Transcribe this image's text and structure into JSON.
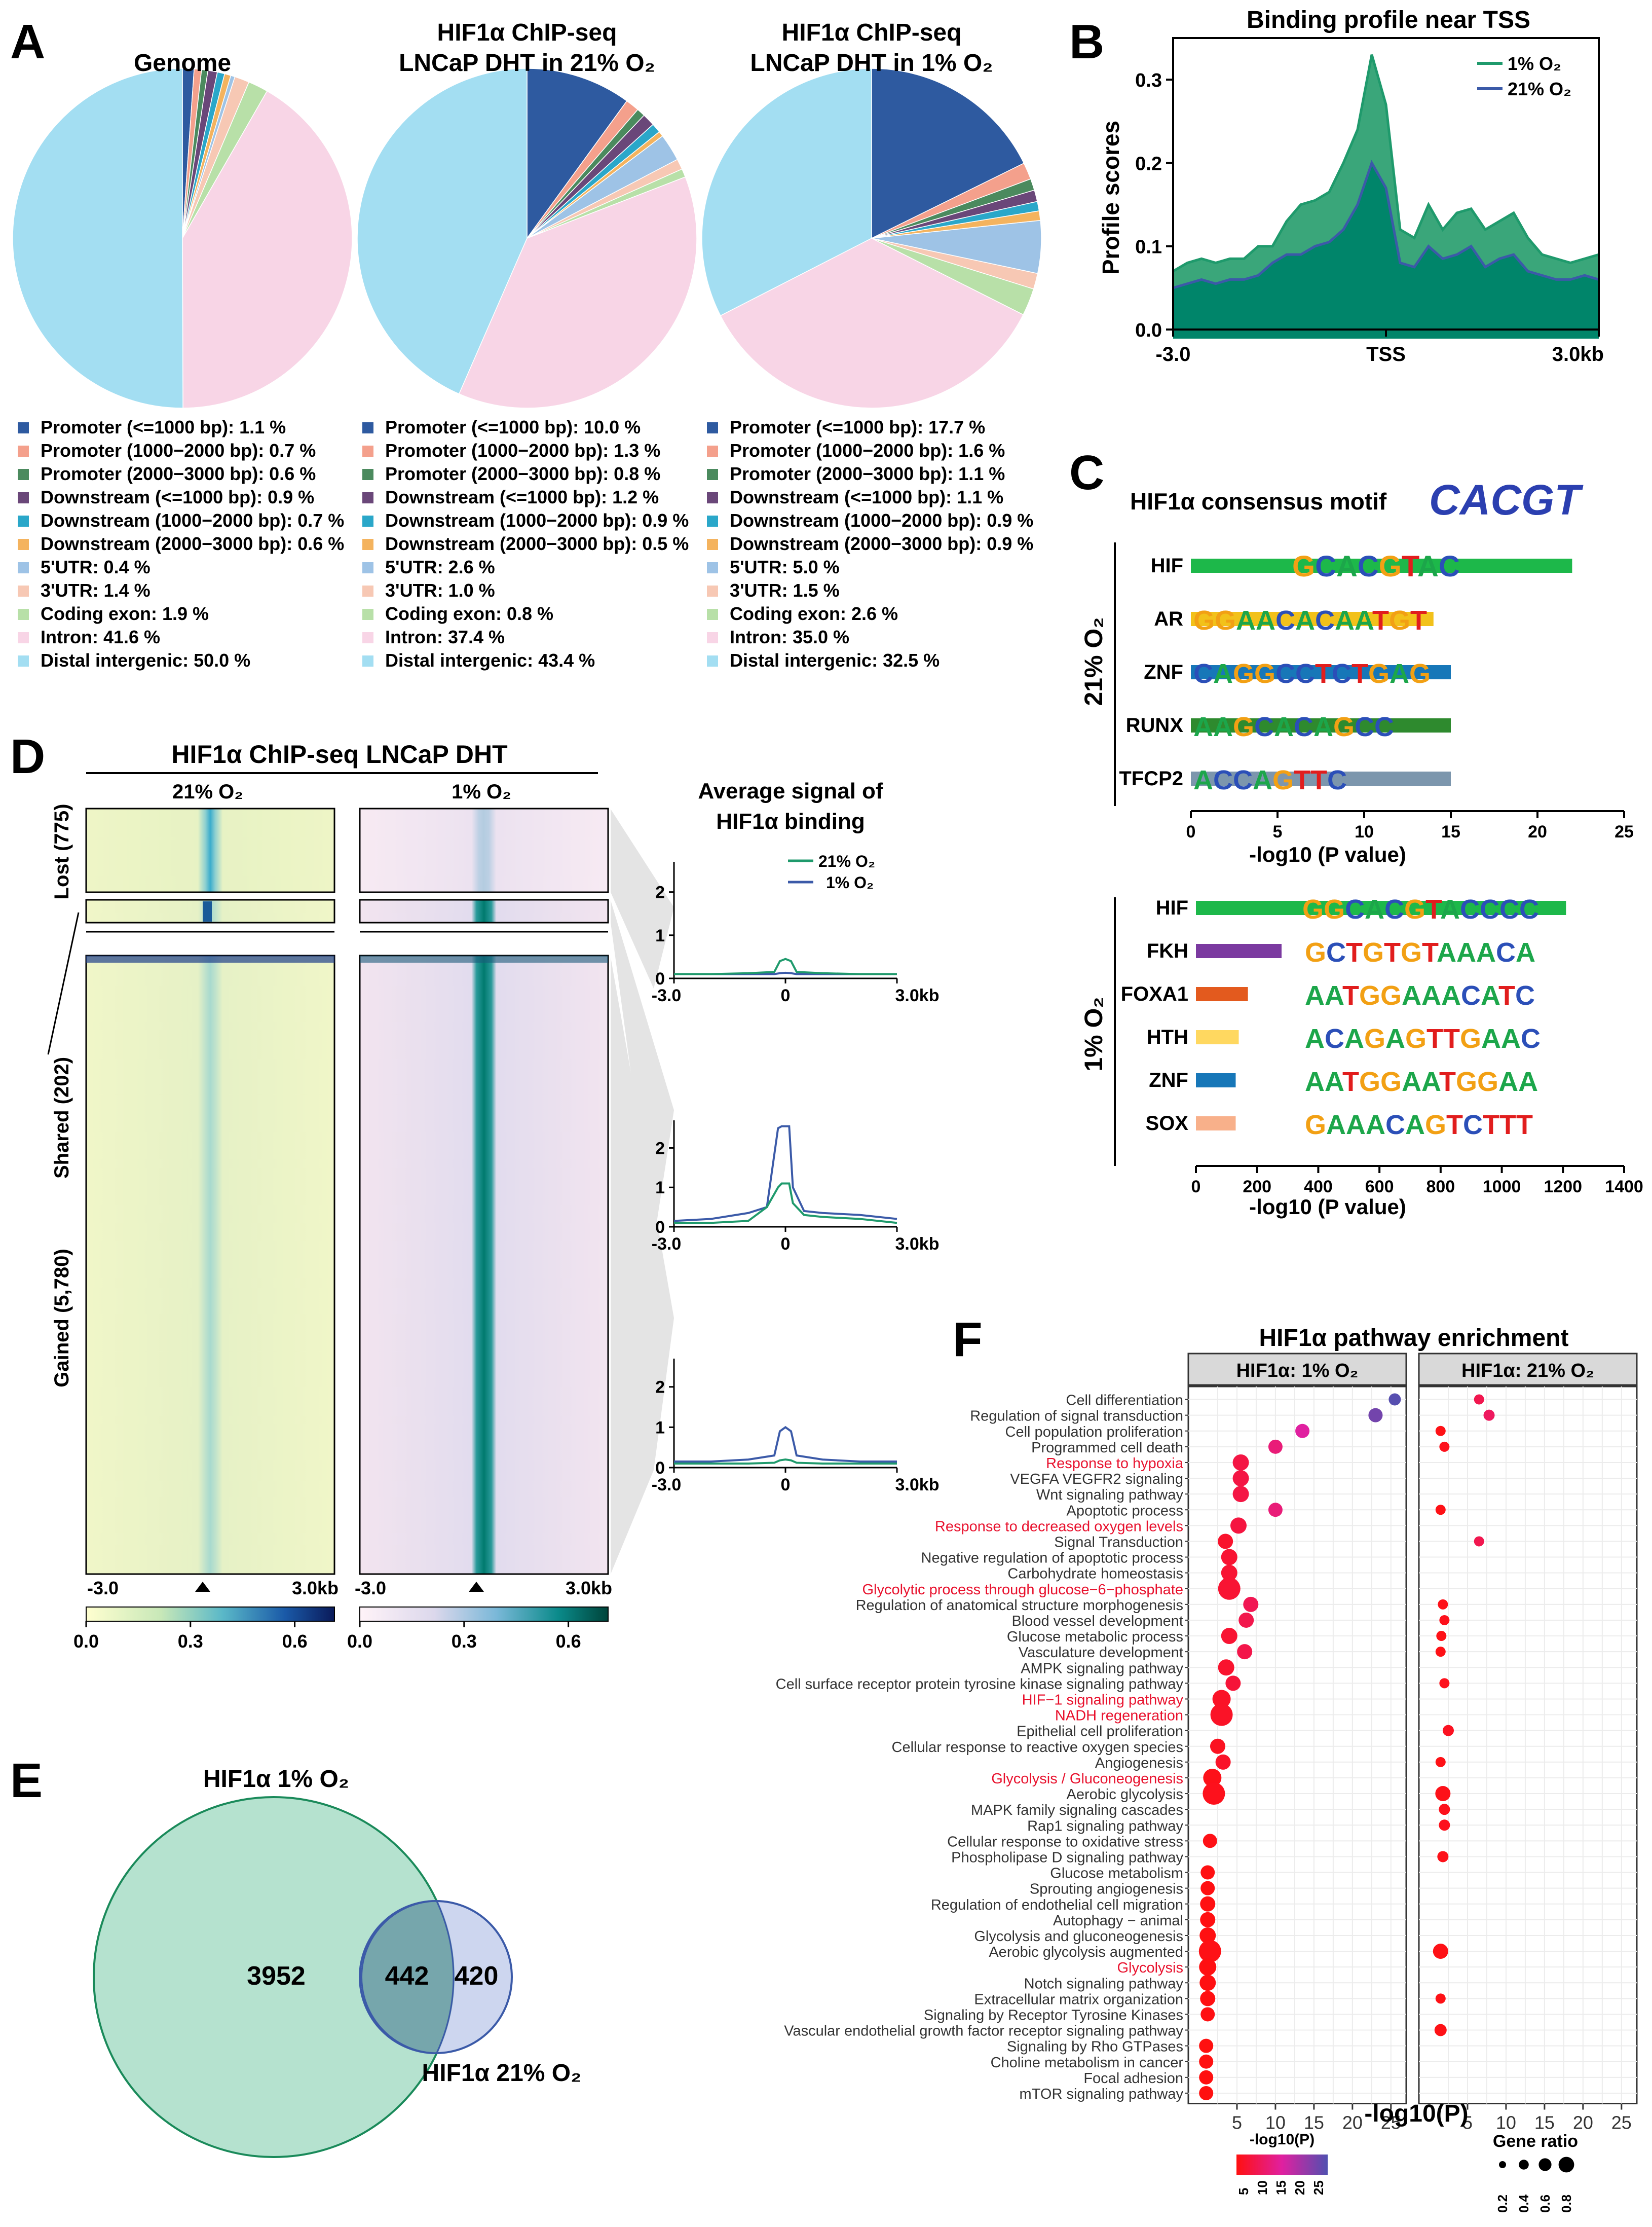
{
  "panel_letters": {
    "A": "A",
    "B": "B",
    "C": "C",
    "D": "D",
    "E": "E",
    "F": "F"
  },
  "colors": {
    "promoter1": "#2e5aa0",
    "promoter2": "#f4a08c",
    "promoter3": "#4b8a5e",
    "downstream1": "#6a4779",
    "downstream2": "#2aa7c9",
    "downstream3": "#f4b35e",
    "utr5": "#9ec3e6",
    "utr3": "#f7c8b4",
    "coding": "#b8e0a8",
    "intron": "#f8d5e6",
    "distal": "#a3def2",
    "green": "#1f9a6c",
    "blue": "#3b5aa8",
    "teal": "#00856a"
  },
  "panelA": {
    "pies": [
      {
        "title1": "Genome",
        "title2": "",
        "values": [
          1.1,
          0.7,
          0.6,
          0.9,
          0.7,
          0.6,
          0.4,
          1.4,
          1.9,
          41.6,
          50.0
        ],
        "legend": [
          "Promoter (<=1000 bp): 1.1 %",
          "Promoter (1000−2000 bp): 0.7 %",
          "Promoter (2000−3000 bp): 0.6 %",
          "Downstream (<=1000 bp): 0.9 %",
          "Downstream (1000−2000 bp): 0.7 %",
          "Downstream (2000−3000 bp): 0.6 %",
          "5'UTR: 0.4 %",
          "3'UTR: 1.4 %",
          "Coding exon: 1.9 %",
          "Intron: 41.6 %",
          "Distal intergenic: 50.0 %"
        ]
      },
      {
        "title1": "HIF1α ChIP-seq",
        "title2": "LNCaP DHT in 21% O₂",
        "values": [
          10.0,
          1.3,
          0.8,
          1.2,
          0.9,
          0.5,
          2.6,
          1.0,
          0.8,
          37.4,
          43.4
        ],
        "legend": [
          "Promoter (<=1000 bp): 10.0 %",
          "Promoter (1000−2000 bp): 1.3 %",
          "Promoter (2000−3000 bp): 0.8 %",
          "Downstream (<=1000 bp): 1.2 %",
          "Downstream (1000−2000 bp): 0.9 %",
          "Downstream (2000−3000 bp): 0.5 %",
          "5'UTR: 2.6 %",
          "3'UTR: 1.0 %",
          "Coding exon: 0.8 %",
          "Intron: 37.4 %",
          "Distal intergenic: 43.4 %"
        ]
      },
      {
        "title1": "HIF1α ChIP-seq",
        "title2": "LNCaP DHT in 1% O₂",
        "values": [
          17.7,
          1.6,
          1.1,
          1.1,
          0.9,
          0.9,
          5.0,
          1.5,
          2.6,
          35.0,
          32.5
        ],
        "legend": [
          "Promoter (<=1000 bp): 17.7 %",
          "Promoter (1000−2000 bp): 1.6 %",
          "Promoter (2000−3000 bp): 1.1 %",
          "Downstream (<=1000 bp): 1.1 %",
          "Downstream (1000−2000 bp): 0.9 %",
          "Downstream (2000−3000 bp): 0.9 %",
          "5'UTR: 5.0 %",
          "3'UTR: 1.5 %",
          "Coding exon: 2.6 %",
          "Intron: 35.0 %",
          "Distal intergenic: 32.5 %"
        ]
      }
    ]
  },
  "chart_data": [
    {
      "type": "area",
      "title": "Binding profile near TSS",
      "ylabel": "Profile scores",
      "xlabel": "",
      "xticks": [
        "-3.0",
        "TSS",
        "3.0kb"
      ],
      "yticks": [
        "0.0",
        "0.1",
        "0.2",
        "0.3"
      ],
      "ylim": [
        0,
        0.35
      ],
      "x": [
        -3.0,
        -2.8,
        -2.6,
        -2.4,
        -2.2,
        -2.0,
        -1.8,
        -1.6,
        -1.4,
        -1.2,
        -1.0,
        -0.8,
        -0.6,
        -0.4,
        -0.2,
        0.0,
        0.2,
        0.4,
        0.6,
        0.8,
        1.0,
        1.2,
        1.4,
        1.6,
        1.8,
        2.0,
        2.2,
        2.4,
        2.6,
        2.8,
        3.0
      ],
      "series": [
        {
          "name": "1% O₂",
          "values": [
            0.07,
            0.08,
            0.085,
            0.08,
            0.085,
            0.085,
            0.1,
            0.1,
            0.13,
            0.15,
            0.155,
            0.165,
            0.2,
            0.24,
            0.33,
            0.27,
            0.12,
            0.11,
            0.15,
            0.12,
            0.14,
            0.145,
            0.12,
            0.13,
            0.14,
            0.11,
            0.09,
            0.085,
            0.08,
            0.085,
            0.09
          ]
        },
        {
          "name": "21% O₂",
          "values": [
            0.05,
            0.055,
            0.06,
            0.055,
            0.06,
            0.06,
            0.065,
            0.08,
            0.09,
            0.09,
            0.1,
            0.105,
            0.12,
            0.15,
            0.2,
            0.17,
            0.08,
            0.075,
            0.1,
            0.085,
            0.09,
            0.1,
            0.075,
            0.085,
            0.09,
            0.07,
            0.065,
            0.06,
            0.06,
            0.065,
            0.06
          ]
        }
      ]
    },
    {
      "type": "bar",
      "title": "HIF1α consensus motif",
      "motif": "CACGT",
      "group": "21% O₂",
      "categories": [
        "HIF",
        "AR",
        "ZNF",
        "RUNX",
        "TFCP2"
      ],
      "values": [
        22,
        14,
        15,
        15,
        15
      ],
      "motifs": [
        "GCACGTAC",
        "GGAACACAATGT",
        "CAGGCCTCTGAG",
        "AAGCACAGCC",
        "ACCAGTTC"
      ],
      "xticks": [
        "0",
        "5",
        "10",
        "15",
        "20",
        "25"
      ],
      "xlabel": "-log10 (P value)",
      "xlim": [
        0,
        25
      ]
    },
    {
      "type": "bar",
      "group": "1% O₂",
      "categories": [
        "HIF",
        "FKH",
        "FOXA1",
        "HTH",
        "ZNF",
        "SOX"
      ],
      "values": [
        1210,
        280,
        170,
        140,
        130,
        130
      ],
      "motifs": [
        "GGCACGTACCCC",
        "GCTGTGTAAACA",
        "AATGGAAACATC",
        "ACAGAGTTGAAC",
        "AATGGAATGGAA",
        "GAAACAGTCTTT"
      ],
      "xticks": [
        "0",
        "200",
        "400",
        "600",
        "800",
        "1000",
        "1200",
        "1400"
      ],
      "xlabel": "-log10 (P value)",
      "xlim": [
        0,
        1400
      ]
    },
    {
      "type": "heatmap",
      "title": "HIF1α ChIP-seq LNCaP DHT",
      "columns": [
        "21% O₂",
        "1% O₂"
      ],
      "groups": [
        "Lost (775)",
        "Shared (202)",
        "Gained (5,780)"
      ],
      "xticks": [
        "-3.0",
        "3.0kb"
      ],
      "colorbar_ticks": [
        "0.0",
        "0.3",
        "0.6"
      ]
    },
    {
      "type": "line",
      "title": "Average signal of HIF1α binding",
      "legend": [
        "21% O₂",
        "1% O₂"
      ],
      "xticks": [
        "-3.0",
        "0",
        "3.0kb"
      ],
      "yticks": [
        "0",
        "1",
        "2"
      ],
      "panels": [
        {
          "group": "Lost",
          "x": [
            -3,
            -2,
            -1,
            -0.3,
            -0.15,
            0,
            0.15,
            0.3,
            1,
            2,
            3
          ],
          "series": [
            {
              "name": "21% O₂",
              "values": [
                0.1,
                0.1,
                0.12,
                0.15,
                0.4,
                0.45,
                0.4,
                0.15,
                0.12,
                0.1,
                0.1
              ]
            },
            {
              "name": "1% O₂",
              "values": [
                0.1,
                0.1,
                0.1,
                0.1,
                0.12,
                0.13,
                0.12,
                0.1,
                0.1,
                0.1,
                0.1
              ]
            }
          ]
        },
        {
          "group": "Shared",
          "x": [
            -3,
            -2,
            -1,
            -0.5,
            -0.2,
            -0.1,
            0.1,
            0.2,
            0.5,
            1,
            2,
            3
          ],
          "series": [
            {
              "name": "21% O₂",
              "values": [
                0.1,
                0.1,
                0.15,
                0.5,
                1.0,
                1.1,
                1.1,
                0.6,
                0.3,
                0.25,
                0.2,
                0.1
              ]
            },
            {
              "name": "1% O₂",
              "values": [
                0.15,
                0.2,
                0.35,
                0.5,
                2.5,
                2.55,
                2.55,
                1.0,
                0.4,
                0.35,
                0.3,
                0.2
              ]
            }
          ]
        },
        {
          "group": "Gained",
          "x": [
            -3,
            -2,
            -1,
            -0.3,
            -0.15,
            0,
            0.15,
            0.3,
            1,
            2,
            3
          ],
          "series": [
            {
              "name": "21% O₂",
              "values": [
                0.1,
                0.1,
                0.1,
                0.12,
                0.18,
                0.2,
                0.18,
                0.12,
                0.1,
                0.1,
                0.1
              ]
            },
            {
              "name": "1% O₂",
              "values": [
                0.15,
                0.15,
                0.2,
                0.3,
                0.9,
                1.0,
                0.9,
                0.3,
                0.2,
                0.15,
                0.15
              ]
            }
          ]
        }
      ]
    },
    {
      "type": "venn",
      "sets": [
        {
          "name": "HIF1α 1% O₂",
          "only": 3952
        },
        {
          "name": "HIF1α 21% O₂",
          "only": 420
        }
      ],
      "intersection": 442
    },
    {
      "type": "scatter",
      "title": "HIF1α pathway enrichment",
      "facets": [
        "HIF1α: 1% O₂",
        "HIF1α: 21% O₂"
      ],
      "xlabel": "-log10(P)",
      "xticks": [
        "5",
        "10",
        "15",
        "20",
        "25"
      ],
      "xlim": [
        0,
        26
      ],
      "color_legend_title": "-log10(P)",
      "color_legend_ticks": [
        "5",
        "10",
        "15",
        "20",
        "25"
      ],
      "size_legend_title": "Gene ratio",
      "size_legend_ticks": [
        "0.2",
        "0.4",
        "0.6",
        "0.8"
      ],
      "terms": [
        "Cell differentiation",
        "Regulation of signal transduction",
        "Cell population proliferation",
        "Programmed cell death",
        "Response to hypoxia",
        "VEGFA VEGFR2 signaling",
        "Wnt signaling pathway",
        "Apoptotic process",
        "Response to decreased oxygen levels",
        "Signal Transduction",
        "Negative regulation of apoptotic process",
        "Carbohydrate homeostasis",
        "Glycolytic process through glucose−6−phosphate",
        "Regulation of anatomical structure morphogenesis",
        "Blood vessel development",
        "Glucose metabolic process",
        "Vasculature development",
        "AMPK signaling pathway",
        "Cell surface receptor protein tyrosine kinase signaling pathway",
        "HIF−1 signaling pathway",
        "NADH regeneration",
        "Epithelial cell proliferation",
        "Cellular response to reactive oxygen species",
        "Angiogenesis",
        "Glycolysis / Gluconeogenesis",
        "Aerobic glycolysis",
        "MAPK family signaling cascades",
        "Rap1 signaling pathway",
        "Cellular response to oxidative stress",
        "Phospholipase D signaling pathway",
        "Glucose metabolism",
        "Sprouting angiogenesis",
        "Regulation of endothelial cell migration",
        "Autophagy − animal",
        "Glycolysis and gluconeogenesis",
        "Aerobic glycolysis augmented",
        "Glycolysis",
        "Notch signaling pathway",
        "Extracellular matrix organization",
        "Signaling by Receptor Tyrosine Kinases",
        "Vascular endothelial growth factor receptor signaling pathway",
        "Signaling by Rho GTPases",
        "Choline metabolism in cancer",
        "Focal adhesion",
        "mTOR signaling pathway"
      ],
      "highlighted": [
        "Response to hypoxia",
        "Response to decreased oxygen levels",
        "Glycolytic process through glucose−6−phosphate",
        "HIF−1 signaling pathway",
        "NADH regeneration",
        "Glycolysis / Gluconeogenesis",
        "Glycolysis"
      ],
      "hypoxia_x": [
        25.5,
        23,
        13.5,
        10,
        5.5,
        5.5,
        5.5,
        10,
        5.2,
        3.5,
        4,
        4,
        4,
        6.8,
        6.2,
        4,
        6,
        3.6,
        4.5,
        3,
        3,
        null,
        2.5,
        3.2,
        1.8,
        2,
        null,
        null,
        1.5,
        null,
        1.2,
        1.2,
        1.2,
        1.2,
        1.2,
        1.5,
        1.2,
        1.2,
        1.2,
        1.2,
        null,
        1,
        1,
        1,
        1
      ],
      "hypoxia_size": [
        0.3,
        0.4,
        0.4,
        0.4,
        0.5,
        0.5,
        0.5,
        0.4,
        0.5,
        0.45,
        0.5,
        0.5,
        0.8,
        0.45,
        0.45,
        0.5,
        0.45,
        0.5,
        0.45,
        0.6,
        0.8,
        null,
        0.45,
        0.45,
        0.6,
        0.8,
        null,
        null,
        0.4,
        null,
        0.4,
        0.4,
        0.45,
        0.45,
        0.5,
        0.8,
        0.55,
        0.5,
        0.45,
        0.4,
        null,
        0.4,
        0.4,
        0.4,
        0.4
      ],
      "normoxia_x": [
        6.5,
        7.8,
        1.5,
        2,
        null,
        null,
        null,
        1.5,
        null,
        6.5,
        null,
        null,
        null,
        1.8,
        2,
        1.6,
        1.5,
        null,
        2,
        null,
        null,
        2.5,
        null,
        1.5,
        null,
        1.8,
        2,
        2,
        null,
        1.8,
        null,
        null,
        null,
        null,
        null,
        1.5,
        null,
        null,
        1.5,
        null,
        1.5,
        null,
        null,
        null,
        null
      ],
      "normoxia_size": [
        0.2,
        0.25,
        0.2,
        0.2,
        null,
        null,
        null,
        0.2,
        null,
        0.2,
        null,
        null,
        null,
        0.2,
        0.2,
        0.2,
        0.2,
        null,
        0.2,
        null,
        null,
        0.25,
        null,
        0.2,
        null,
        0.45,
        0.25,
        0.25,
        null,
        0.25,
        null,
        null,
        null,
        null,
        null,
        0.45,
        null,
        null,
        0.2,
        null,
        0.3,
        null,
        null,
        null,
        null
      ]
    }
  ]
}
